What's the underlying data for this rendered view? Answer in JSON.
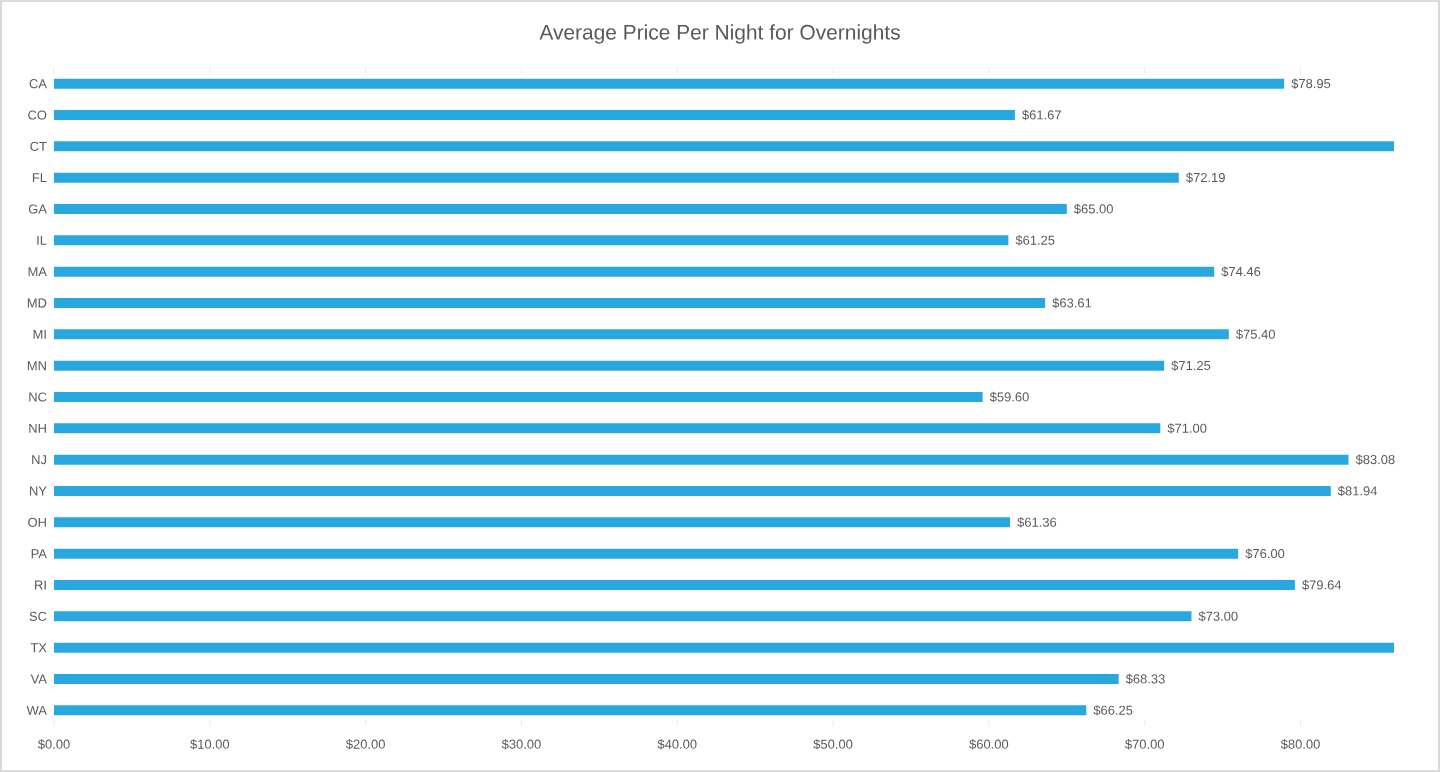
{
  "chart_data": {
    "type": "bar",
    "orientation": "horizontal",
    "title": "Average Price Per Night for Overnights",
    "categories": [
      "CA",
      "CO",
      "CT",
      "FL",
      "GA",
      "IL",
      "MA",
      "MD",
      "MI",
      "MN",
      "NC",
      "NH",
      "NJ",
      "NY",
      "OH",
      "PA",
      "RI",
      "SC",
      "TX",
      "VA",
      "WA"
    ],
    "values": [
      78.95,
      61.67,
      86,
      72.19,
      65.0,
      61.25,
      74.46,
      63.61,
      75.4,
      71.25,
      59.6,
      71.0,
      83.08,
      81.94,
      61.36,
      76.0,
      79.64,
      73.0,
      86,
      68.33,
      66.25
    ],
    "value_labels": [
      "$78.95",
      "$61.67",
      null,
      "$72.19",
      "$65.00",
      "$61.25",
      "$74.46",
      "$63.61",
      "$75.40",
      "$71.25",
      "$59.60",
      "$71.00",
      "$83.08",
      "$81.94",
      "$61.36",
      "$76.00",
      "$79.64",
      "$73.00",
      null,
      "$68.33",
      "$66.25"
    ],
    "color": "#29a8e0",
    "xlim": [
      0,
      86
    ],
    "xticks": [
      {
        "value": 0,
        "label": "$0.00"
      },
      {
        "value": 10,
        "label": "$10.00"
      },
      {
        "value": 20,
        "label": "$20.00"
      },
      {
        "value": 30,
        "label": "$30.00"
      },
      {
        "value": 40,
        "label": "$40.00"
      },
      {
        "value": 50,
        "label": "$50.00"
      },
      {
        "value": 60,
        "label": "$60.00"
      },
      {
        "value": 70,
        "label": "$70.00"
      },
      {
        "value": 80,
        "label": "$80.00"
      }
    ]
  }
}
